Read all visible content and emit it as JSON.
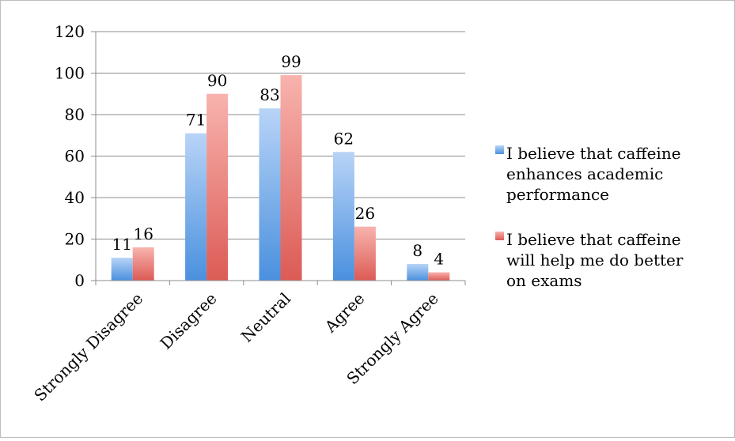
{
  "chart_data": {
    "type": "bar",
    "categories": [
      "Strongly Disagree",
      "Disagree",
      "Neutral",
      "Agree",
      "Strongly Agree"
    ],
    "series": [
      {
        "name": "I believe that caffeine enhances academic performance",
        "legend_lines": [
          "I believe that caffeine",
          "enhances academic",
          "performance"
        ],
        "values": [
          11,
          71,
          83,
          62,
          8
        ],
        "color": "#5b9bd5"
      },
      {
        "name": "I believe that caffeine will help me do better on exams",
        "legend_lines": [
          "I believe that caffeine",
          "will help me do better",
          "on exams"
        ],
        "values": [
          16,
          90,
          99,
          26,
          4
        ],
        "color": "#e05a54"
      }
    ],
    "ylim": [
      0,
      120
    ],
    "yticks": [
      "0",
      "20",
      "40",
      "60",
      "80",
      "100",
      "120"
    ],
    "grid": true,
    "legend_position": "right",
    "title": "",
    "xlabel": "",
    "ylabel": ""
  }
}
